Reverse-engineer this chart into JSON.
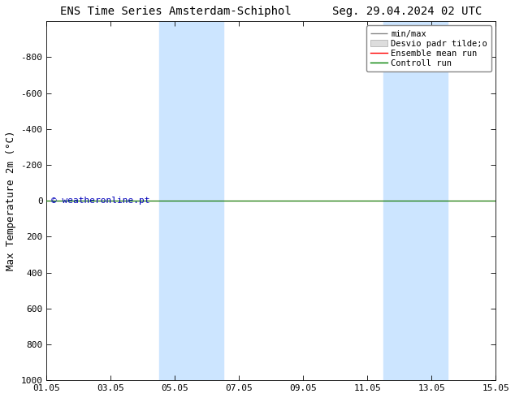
{
  "title_left": "ENS Time Series Amsterdam-Schiphol",
  "title_right": "Seg. 29.04.2024 02 UTC",
  "ylabel": "Max Temperature 2m (°C)",
  "ylim_bottom": 1000,
  "ylim_top": -1000,
  "yticks": [
    -800,
    -600,
    -400,
    -200,
    0,
    200,
    400,
    600,
    800,
    1000
  ],
  "xlim": [
    0,
    14
  ],
  "xtick_labels": [
    "01.05",
    "03.05",
    "05.05",
    "07.05",
    "09.05",
    "11.05",
    "13.05",
    "15.05"
  ],
  "xtick_positions": [
    0,
    2,
    4,
    6,
    8,
    10,
    12,
    14
  ],
  "shaded_bands": [
    {
      "xstart": 3.5,
      "xend": 5.5
    },
    {
      "xstart": 10.5,
      "xend": 12.5
    }
  ],
  "shaded_color": "#cce5ff",
  "green_line_color": "#008000",
  "red_line_color": "#ff0000",
  "copyright_text": "© weatheronline.pt",
  "copyright_color": "#0000bb",
  "background_color": "#ffffff",
  "title_fontsize": 10,
  "ylabel_fontsize": 9,
  "tick_fontsize": 8,
  "legend_fontsize": 7.5
}
